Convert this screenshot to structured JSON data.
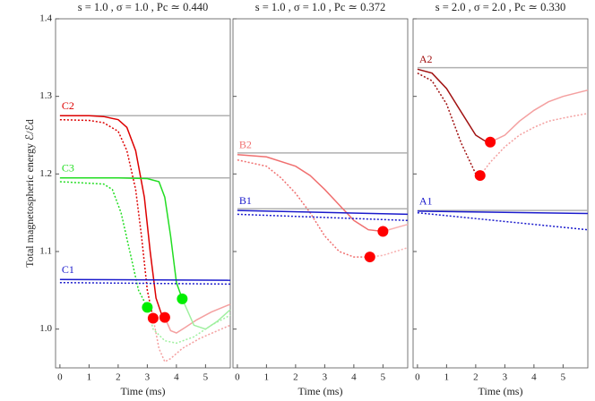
{
  "chart_data": [
    {
      "type": "line",
      "title": "s = 1.0 , σ = 1.0 , Pc ≃ 0.440",
      "xlabel": "Time (ms)",
      "ylabel": "Total magnetospheric energy ℰ/ℰd",
      "xlim": [
        -0.15,
        5.85
      ],
      "ylim": [
        0.95,
        1.4
      ],
      "xticks": [
        0,
        1,
        2,
        3,
        4,
        5
      ],
      "yticks": [
        {
          "value": 1.0,
          "label": "1.0"
        },
        1.1,
        1.2,
        1.3,
        {
          "value": 1.4,
          "label": "1.4"
        }
      ],
      "series": [
        {
          "color": "#b0b0b0",
          "x": [
            0,
            5.85
          ],
          "values": [
            1.275,
            1.275
          ]
        },
        {
          "color": "#b0b0b0",
          "x": [
            0,
            5.85
          ],
          "values": [
            1.195,
            1.195
          ]
        },
        {
          "name": "C2",
          "color": "#dd0000",
          "x": [
            0,
            1,
            1.5,
            2,
            2.3,
            2.6,
            2.9,
            3.1,
            3.3,
            3.5,
            3.6
          ],
          "values": [
            1.275,
            1.275,
            1.274,
            1.27,
            1.26,
            1.23,
            1.17,
            1.1,
            1.04,
            1.018,
            1.015
          ]
        },
        {
          "color": "#f4a0a0",
          "x": [
            3.6,
            3.8,
            4.0,
            4.3,
            4.7,
            5.2,
            5.85
          ],
          "values": [
            1.015,
            0.998,
            0.995,
            1.002,
            1.012,
            1.022,
            1.032
          ]
        },
        {
          "color": "#dd0000",
          "dash": true,
          "x": [
            0,
            1,
            1.5,
            2,
            2.3,
            2.6,
            2.8,
            3.0,
            3.2
          ],
          "values": [
            1.27,
            1.269,
            1.266,
            1.255,
            1.23,
            1.18,
            1.12,
            1.05,
            1.014
          ]
        },
        {
          "color": "#f4a0a0",
          "dash": true,
          "x": [
            3.2,
            3.4,
            3.6,
            3.8,
            4.2,
            4.8,
            5.85
          ],
          "values": [
            1.014,
            0.975,
            0.958,
            0.962,
            0.975,
            0.988,
            1.005
          ]
        },
        {
          "name": "C3",
          "color": "#22dd22",
          "x": [
            0,
            2,
            3,
            3.4,
            3.6,
            3.8,
            4.0,
            4.2
          ],
          "values": [
            1.195,
            1.195,
            1.194,
            1.19,
            1.17,
            1.12,
            1.06,
            1.039
          ]
        },
        {
          "color": "#a0f0a0",
          "x": [
            4.2,
            4.6,
            5.0,
            5.4,
            5.85
          ],
          "values": [
            1.039,
            1.005,
            1.0,
            1.01,
            1.025
          ]
        },
        {
          "color": "#22dd22",
          "dash": true,
          "x": [
            0,
            1,
            1.5,
            1.8,
            2.1,
            2.4,
            2.7,
            3.0
          ],
          "values": [
            1.19,
            1.188,
            1.187,
            1.18,
            1.15,
            1.1,
            1.05,
            1.028
          ]
        },
        {
          "color": "#a0f0a0",
          "dash": true,
          "x": [
            3.0,
            3.2,
            3.6,
            4.0,
            4.6,
            5.2,
            5.85
          ],
          "values": [
            1.028,
            1.0,
            0.985,
            0.982,
            0.99,
            1.005,
            1.018
          ]
        },
        {
          "name": "C1",
          "color": "#1a1acc",
          "x": [
            0,
            5.85
          ],
          "values": [
            1.064,
            1.063
          ]
        },
        {
          "color": "#1a1acc",
          "dash": true,
          "x": [
            0,
            5.85
          ],
          "values": [
            1.06,
            1.058
          ]
        }
      ],
      "markers": {
        "x": [
          3.2,
          3.6,
          3.0,
          4.2
        ],
        "values": [
          1.014,
          1.015,
          1.028,
          1.039
        ],
        "colors": [
          "#ff0000",
          "#ff0000",
          "#00ee00",
          "#00ee00"
        ]
      }
    },
    {
      "type": "line",
      "title": "s = 1.0 , σ = 1.0 , Pc ≃ 0.372",
      "xlabel": "Time (ms)",
      "xlim": [
        -0.15,
        5.85
      ],
      "ylim": [
        0.95,
        1.4
      ],
      "xticks": [
        0,
        1,
        2,
        3,
        4,
        5
      ],
      "series": [
        {
          "color": "#b0b0b0",
          "x": [
            0,
            5.85
          ],
          "values": [
            1.227,
            1.227
          ]
        },
        {
          "color": "#b0b0b0",
          "x": [
            0,
            5.85
          ],
          "values": [
            1.155,
            1.155
          ]
        },
        {
          "name": "B2",
          "color": "#f07070",
          "x": [
            0,
            1,
            2,
            2.5,
            3,
            3.5,
            4,
            4.5,
            5
          ],
          "values": [
            1.225,
            1.222,
            1.21,
            1.198,
            1.18,
            1.16,
            1.14,
            1.128,
            1.126
          ]
        },
        {
          "color": "#f8b0b0",
          "x": [
            5,
            5.85
          ],
          "values": [
            1.126,
            1.135
          ]
        },
        {
          "color": "#f07070",
          "dash": true,
          "x": [
            0,
            1,
            1.5,
            2,
            2.5,
            3,
            3.5,
            4,
            4.55
          ],
          "values": [
            1.218,
            1.21,
            1.195,
            1.175,
            1.15,
            1.12,
            1.1,
            1.093,
            1.093
          ]
        },
        {
          "color": "#f8b0b0",
          "dash": true,
          "x": [
            4.55,
            5,
            5.85
          ],
          "values": [
            1.093,
            1.095,
            1.105
          ]
        },
        {
          "name": "B1",
          "color": "#1a1acc",
          "x": [
            0,
            5.85
          ],
          "values": [
            1.153,
            1.148
          ]
        },
        {
          "color": "#1a1acc",
          "dash": true,
          "x": [
            0,
            5.85
          ],
          "values": [
            1.148,
            1.14
          ]
        }
      ],
      "markers": {
        "x": [
          5.0,
          4.55
        ],
        "values": [
          1.126,
          1.093
        ],
        "colors": [
          "#ff0000",
          "#ff0000"
        ]
      }
    },
    {
      "type": "line",
      "title": "s = 2.0 , σ = 2.0 , Pc ≃ 0.330",
      "xlabel": "Time (ms)",
      "xlim": [
        -0.15,
        5.85
      ],
      "ylim": [
        0.95,
        1.4
      ],
      "xticks": [
        0,
        1,
        2,
        3,
        4,
        5
      ],
      "series": [
        {
          "color": "#b0b0b0",
          "x": [
            0,
            5.85
          ],
          "values": [
            1.337,
            1.337
          ]
        },
        {
          "color": "#b0b0b0",
          "x": [
            0,
            5.85
          ],
          "values": [
            1.153,
            1.153
          ]
        },
        {
          "name": "A2",
          "color": "#a01010",
          "x": [
            0,
            0.5,
            1,
            1.5,
            2,
            2.3,
            2.5
          ],
          "values": [
            1.335,
            1.33,
            1.31,
            1.28,
            1.25,
            1.243,
            1.241
          ]
        },
        {
          "color": "#f4a0a0",
          "x": [
            2.5,
            3,
            3.5,
            4,
            4.5,
            5,
            5.85
          ],
          "values": [
            1.241,
            1.25,
            1.268,
            1.282,
            1.293,
            1.3,
            1.308
          ]
        },
        {
          "color": "#a01010",
          "dash": true,
          "x": [
            0,
            0.5,
            1,
            1.5,
            2,
            2.15
          ],
          "values": [
            1.33,
            1.32,
            1.29,
            1.24,
            1.2,
            1.198
          ]
        },
        {
          "color": "#f4a0a0",
          "dash": true,
          "x": [
            2.15,
            2.5,
            3,
            3.5,
            4,
            4.5,
            5,
            5.85
          ],
          "values": [
            1.198,
            1.215,
            1.235,
            1.25,
            1.26,
            1.268,
            1.272,
            1.278
          ]
        },
        {
          "name": "A1",
          "color": "#1a1acc",
          "x": [
            0,
            5.85
          ],
          "values": [
            1.152,
            1.149
          ]
        },
        {
          "color": "#1a1acc",
          "dash": true,
          "x": [
            0,
            5.85
          ],
          "values": [
            1.15,
            1.128
          ]
        }
      ],
      "markers": {
        "x": [
          2.5,
          2.15
        ],
        "values": [
          1.241,
          1.198
        ],
        "colors": [
          "#ff0000",
          "#ff0000"
        ]
      }
    }
  ]
}
